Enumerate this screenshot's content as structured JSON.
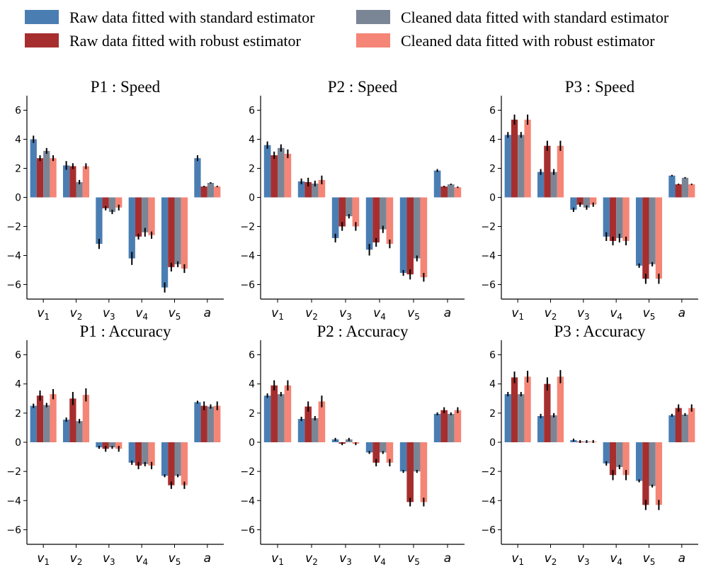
{
  "legend": [
    {
      "label": "Raw data fitted with standard estimator",
      "color": "#4A7EB3"
    },
    {
      "label": "Raw data fitted with robust estimator",
      "color": "#A72E2E"
    },
    {
      "label": "Cleaned data fitted with standard estimator",
      "color": "#7A8696"
    },
    {
      "label": "Cleaned data fitted with robust estimator",
      "color": "#F58576"
    }
  ],
  "chart_data": [
    {
      "type": "bar",
      "title": "P1 : Speed",
      "categories": [
        "v1",
        "v2",
        "v3",
        "v4",
        "v5",
        "a"
      ],
      "ylim": [
        -7,
        7
      ],
      "yticks": [
        -6,
        -4,
        -2,
        0,
        2,
        4,
        6
      ],
      "series": [
        {
          "name": "Raw data fitted with standard estimator",
          "values": [
            4.0,
            2.2,
            -3.2,
            -4.2,
            -6.2,
            2.7
          ],
          "errors": [
            0.25,
            0.3,
            0.35,
            0.45,
            0.35,
            0.2
          ]
        },
        {
          "name": "Raw data fitted with robust estimator",
          "values": [
            2.7,
            2.15,
            -0.75,
            -2.7,
            -4.8,
            0.75
          ],
          "errors": [
            0.2,
            0.2,
            0.15,
            0.2,
            0.3,
            0.05
          ]
        },
        {
          "name": "Cleaned data fitted with standard estimator",
          "values": [
            3.2,
            1.05,
            -1.0,
            -2.4,
            -4.6,
            1.0
          ],
          "errors": [
            0.2,
            0.15,
            0.15,
            0.3,
            0.2,
            0.05
          ]
        },
        {
          "name": "Cleaned data fitted with robust estimator",
          "values": [
            2.7,
            2.15,
            -0.7,
            -2.6,
            -4.9,
            0.75
          ],
          "errors": [
            0.2,
            0.2,
            0.2,
            0.25,
            0.3,
            0.05
          ]
        }
      ]
    },
    {
      "type": "bar",
      "title": "P2 : Speed",
      "categories": [
        "v1",
        "v2",
        "v3",
        "v4",
        "v5",
        "a"
      ],
      "ylim": [
        -7,
        7
      ],
      "yticks": [
        -6,
        -4,
        -2,
        0,
        2,
        4,
        6
      ],
      "series": [
        {
          "name": "Raw data fitted with standard estimator",
          "values": [
            3.6,
            1.1,
            -2.8,
            -3.6,
            -5.2,
            1.85
          ],
          "errors": [
            0.25,
            0.2,
            0.3,
            0.4,
            0.2,
            0.1
          ]
        },
        {
          "name": "Raw data fitted with robust estimator",
          "values": [
            2.9,
            1.05,
            -2.0,
            -3.1,
            -5.3,
            0.75
          ],
          "errors": [
            0.25,
            0.3,
            0.3,
            0.3,
            0.35,
            0.05
          ]
        },
        {
          "name": "Cleaned data fitted with standard estimator",
          "values": [
            3.4,
            0.95,
            -1.3,
            -2.2,
            -4.2,
            0.9
          ],
          "errors": [
            0.25,
            0.2,
            0.15,
            0.25,
            0.2,
            0.05
          ]
        },
        {
          "name": "Cleaned data fitted with robust estimator",
          "values": [
            3.0,
            1.2,
            -2.0,
            -3.2,
            -5.5,
            0.7
          ],
          "errors": [
            0.3,
            0.3,
            0.3,
            0.3,
            0.3,
            0.05
          ]
        }
      ]
    },
    {
      "type": "bar",
      "title": "P3 : Speed",
      "categories": [
        "v1",
        "v2",
        "v3",
        "v4",
        "v5",
        "a"
      ],
      "ylim": [
        -7,
        7
      ],
      "yticks": [
        -6,
        -4,
        -2,
        0,
        2,
        4,
        6
      ],
      "series": [
        {
          "name": "Raw data fitted with standard estimator",
          "values": [
            4.3,
            1.75,
            -0.85,
            -2.7,
            -4.7,
            1.5
          ],
          "errors": [
            0.2,
            0.2,
            0.15,
            0.3,
            0.15,
            0.05
          ]
        },
        {
          "name": "Raw data fitted with robust estimator",
          "values": [
            5.35,
            3.55,
            -0.5,
            -3.0,
            -5.6,
            0.9
          ],
          "errors": [
            0.35,
            0.35,
            0.15,
            0.3,
            0.35,
            0.05
          ]
        },
        {
          "name": "Cleaned data fitted with standard estimator",
          "values": [
            4.3,
            1.75,
            -0.7,
            -2.8,
            -4.6,
            1.35
          ],
          "errors": [
            0.2,
            0.2,
            0.15,
            0.3,
            0.15,
            0.05
          ]
        },
        {
          "name": "Cleaned data fitted with robust estimator",
          "values": [
            5.35,
            3.55,
            -0.5,
            -3.0,
            -5.6,
            0.9
          ],
          "errors": [
            0.35,
            0.35,
            0.15,
            0.3,
            0.35,
            0.05
          ]
        }
      ]
    },
    {
      "type": "bar",
      "title": "P1 : Accuracy",
      "categories": [
        "v1",
        "v2",
        "v3",
        "v4",
        "v5",
        "a"
      ],
      "ylim": [
        -7,
        7
      ],
      "yticks": [
        -6,
        -4,
        -2,
        0,
        2,
        4,
        6
      ],
      "series": [
        {
          "name": "Raw data fitted with standard estimator",
          "values": [
            2.5,
            1.55,
            -0.35,
            -1.4,
            -2.3,
            2.75
          ],
          "errors": [
            0.15,
            0.15,
            0.1,
            0.15,
            0.1,
            0.1
          ]
        },
        {
          "name": "Raw data fitted with robust estimator",
          "values": [
            3.2,
            3.0,
            -0.45,
            -1.6,
            -2.95,
            2.5
          ],
          "errors": [
            0.35,
            0.45,
            0.2,
            0.25,
            0.25,
            0.3
          ]
        },
        {
          "name": "Cleaned data fitted with standard estimator",
          "values": [
            2.55,
            1.45,
            -0.35,
            -1.5,
            -2.3,
            2.45
          ],
          "errors": [
            0.15,
            0.15,
            0.1,
            0.15,
            0.1,
            0.15
          ]
        },
        {
          "name": "Cleaned data fitted with robust estimator",
          "values": [
            3.3,
            3.25,
            -0.45,
            -1.6,
            -2.95,
            2.5
          ],
          "errors": [
            0.35,
            0.45,
            0.2,
            0.25,
            0.25,
            0.3
          ]
        }
      ]
    },
    {
      "type": "bar",
      "title": "P2 : Accuracy",
      "categories": [
        "v1",
        "v2",
        "v3",
        "v4",
        "v5",
        "a"
      ],
      "ylim": [
        -7,
        7
      ],
      "yticks": [
        -6,
        -4,
        -2,
        0,
        2,
        4,
        6
      ],
      "series": [
        {
          "name": "Raw data fitted with standard estimator",
          "values": [
            3.2,
            1.6,
            0.2,
            -0.7,
            -2.0,
            1.95
          ],
          "errors": [
            0.15,
            0.15,
            0.1,
            0.1,
            0.1,
            0.1
          ]
        },
        {
          "name": "Raw data fitted with robust estimator",
          "values": [
            3.9,
            2.45,
            -0.1,
            -1.4,
            -4.1,
            2.2
          ],
          "errors": [
            0.35,
            0.35,
            0.1,
            0.25,
            0.3,
            0.2
          ]
        },
        {
          "name": "Cleaned data fitted with standard estimator",
          "values": [
            3.3,
            1.65,
            0.2,
            -0.7,
            -2.0,
            1.95
          ],
          "errors": [
            0.15,
            0.15,
            0.1,
            0.1,
            0.1,
            0.1
          ]
        },
        {
          "name": "Cleaned data fitted with robust estimator",
          "values": [
            3.9,
            2.8,
            -0.1,
            -1.4,
            -4.1,
            2.2
          ],
          "errors": [
            0.35,
            0.4,
            0.1,
            0.25,
            0.3,
            0.2
          ]
        }
      ]
    },
    {
      "type": "bar",
      "title": "P3 : Accuracy",
      "categories": [
        "v1",
        "v2",
        "v3",
        "v4",
        "v5",
        "a"
      ],
      "ylim": [
        -7,
        7
      ],
      "yticks": [
        -6,
        -4,
        -2,
        0,
        2,
        4,
        6
      ],
      "series": [
        {
          "name": "Raw data fitted with standard estimator",
          "values": [
            3.3,
            1.8,
            0.15,
            -1.45,
            -2.65,
            1.85
          ],
          "errors": [
            0.15,
            0.15,
            0.1,
            0.15,
            0.1,
            0.1
          ]
        },
        {
          "name": "Raw data fitted with robust estimator",
          "values": [
            4.45,
            4.0,
            0.05,
            -2.25,
            -4.3,
            2.35
          ],
          "errors": [
            0.4,
            0.45,
            0.1,
            0.35,
            0.35,
            0.25
          ]
        },
        {
          "name": "Cleaned data fitted with standard estimator",
          "values": [
            3.3,
            1.85,
            0.05,
            -1.7,
            -3.0,
            1.9
          ],
          "errors": [
            0.15,
            0.15,
            0.1,
            0.15,
            0.1,
            0.1
          ]
        },
        {
          "name": "Cleaned data fitted with robust estimator",
          "values": [
            4.5,
            4.5,
            0.05,
            -2.25,
            -4.3,
            2.35
          ],
          "errors": [
            0.4,
            0.45,
            0.1,
            0.35,
            0.35,
            0.25
          ]
        }
      ]
    }
  ]
}
